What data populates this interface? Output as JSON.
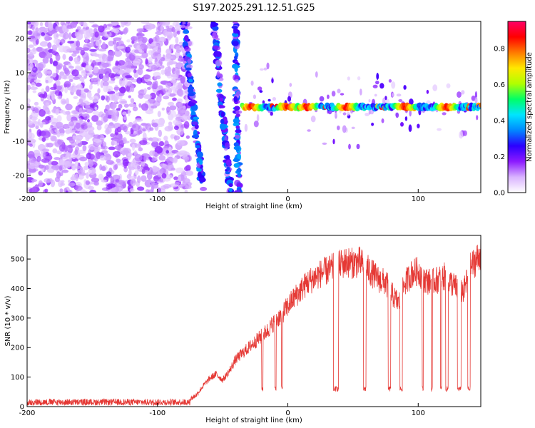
{
  "figure_title": "S197.2025.291.12.51.G25",
  "chart_data": [
    {
      "type": "heatmap",
      "title": "S197.2025.291.12.51.G25",
      "xlabel": "Height of straight line (km)",
      "ylabel": "Frequency (Hz)",
      "xlim": [
        -200,
        148
      ],
      "ylim": [
        -25,
        25
      ],
      "xticks": [
        -200,
        -100,
        0,
        100
      ],
      "yticks": [
        -20,
        -10,
        0,
        10,
        20
      ],
      "xtick_labels": [
        "-200",
        "-100",
        "0",
        "100"
      ],
      "ytick_labels": [
        "-20",
        "-10",
        "0",
        "10",
        "20"
      ],
      "colorbar": {
        "label": "Normalized spectral amplitude",
        "range": [
          0.0,
          0.95
        ],
        "ticks": [
          0.0,
          0.2,
          0.4,
          0.6,
          0.8
        ],
        "tick_labels": [
          "0.0",
          "0.2",
          "0.4",
          "0.6",
          "0.8"
        ],
        "colormap": [
          "#ffffff",
          "#d9b3ff",
          "#8c1aff",
          "#2b00ff",
          "#0088ff",
          "#00e5ff",
          "#00ff66",
          "#b0ff00",
          "#ffe800",
          "#ff7a00",
          "#ff0000",
          "#ff0066"
        ]
      },
      "features": {
        "noise_region_x": [
          -200,
          -75
        ],
        "diagonal_streaks": [
          {
            "x": [
              -80,
              -65
            ],
            "freq": [
              25,
              -25
            ]
          },
          {
            "x": [
              -57,
              -44
            ],
            "freq": [
              25,
              -25
            ]
          },
          {
            "x": [
              -40,
              -38
            ],
            "freq": [
              25,
              -25
            ]
          }
        ],
        "carrier_line": {
          "x": [
            -35,
            148
          ],
          "freq": 0,
          "peak_x": [
            -28,
            0,
            15,
            45,
            90,
            122
          ]
        }
      }
    },
    {
      "type": "line",
      "xlabel": "Height of straight line (km)",
      "ylabel": "SNR (10 * v/v)",
      "xlim": [
        -200,
        148
      ],
      "ylim": [
        0,
        580
      ],
      "xticks": [
        -200,
        -100,
        0,
        100
      ],
      "yticks": [
        0,
        100,
        200,
        300,
        400,
        500
      ],
      "xtick_labels": [
        "-200",
        "-100",
        "0",
        "100"
      ],
      "ytick_labels": [
        "0",
        "100",
        "200",
        "300",
        "400",
        "500"
      ],
      "color": "#e53935",
      "x": [
        -200,
        -180,
        -160,
        -140,
        -120,
        -100,
        -90,
        -80,
        -75,
        -70,
        -65,
        -60,
        -55,
        -50,
        -45,
        -40,
        -35,
        -30,
        -25,
        -20,
        -15,
        -10,
        -5,
        0,
        5,
        10,
        15,
        20,
        25,
        30,
        35,
        40,
        45,
        50,
        55,
        60,
        65,
        70,
        75,
        80,
        85,
        90,
        95,
        100,
        105,
        110,
        115,
        120,
        125,
        130,
        135,
        140,
        145,
        148
      ],
      "y": [
        15,
        15,
        15,
        15,
        15,
        15,
        16,
        18,
        25,
        40,
        70,
        95,
        110,
        90,
        120,
        160,
        180,
        200,
        220,
        240,
        260,
        290,
        310,
        340,
        370,
        395,
        420,
        435,
        450,
        460,
        470,
        480,
        490,
        485,
        490,
        470,
        450,
        430,
        420,
        380,
        350,
        420,
        450,
        460,
        430,
        420,
        430,
        440,
        420,
        400,
        390,
        470,
        500,
        520
      ],
      "dropouts": [
        [
          -20,
          -19
        ],
        [
          -10,
          -9
        ],
        [
          -5,
          -4
        ],
        [
          35,
          39
        ],
        [
          58,
          60
        ],
        [
          77,
          79
        ],
        [
          86,
          88
        ],
        [
          103,
          104
        ],
        [
          110,
          111
        ],
        [
          117,
          118
        ],
        [
          121,
          123
        ],
        [
          130,
          133
        ],
        [
          138,
          140
        ]
      ],
      "dropout_level": 60
    }
  ]
}
